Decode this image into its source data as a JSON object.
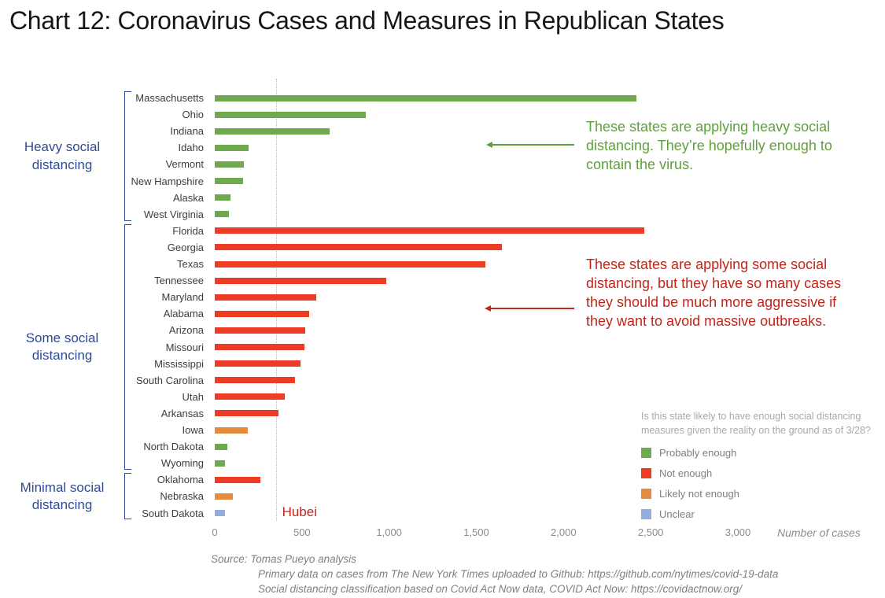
{
  "title": "Chart 12: Coronavirus Cases and Measures in Republican States",
  "colors": {
    "probably_enough": "#6EA84F",
    "not_enough": "#EE3B23",
    "likely_not_enough": "#E58B3E",
    "unclear": "#93AEDC",
    "group_label": "#2F4B93",
    "annotation_green": "#5FA03C",
    "annotation_red": "#C2251A",
    "hubei_line": "#F29B9B",
    "axis_text": "#8C8C8C",
    "state_label": "#3D3D3D",
    "legend_title": "#A9A9A9",
    "legend_text": "#7F7F7F",
    "source_text": "#7F7F7F"
  },
  "chart_data": {
    "type": "bar",
    "orientation": "horizontal",
    "title": "Chart 12: Coronavirus Cases and Measures in Republican States",
    "xlabel": "Number of cases",
    "xlim": [
      0,
      3000
    ],
    "x_ticks": [
      0,
      500,
      1000,
      1500,
      2000,
      2500,
      3000
    ],
    "x_tick_labels": [
      "0",
      "500",
      "1,000",
      "1,500",
      "2,000",
      "2,500",
      "3,000"
    ],
    "grid": false,
    "legend_position": "bottom-right",
    "reference_line": {
      "label": "Hubei",
      "value": 350
    },
    "groups": [
      {
        "label": "Heavy social distancing",
        "states": [
          {
            "name": "Massachusetts",
            "value": 2420,
            "category": "probably_enough"
          },
          {
            "name": "Ohio",
            "value": 865,
            "category": "probably_enough"
          },
          {
            "name": "Indiana",
            "value": 660,
            "category": "probably_enough"
          },
          {
            "name": "Idaho",
            "value": 195,
            "category": "probably_enough"
          },
          {
            "name": "Vermont",
            "value": 165,
            "category": "probably_enough"
          },
          {
            "name": "New Hampshire",
            "value": 160,
            "category": "probably_enough"
          },
          {
            "name": "Alaska",
            "value": 90,
            "category": "probably_enough"
          },
          {
            "name": "West Virginia",
            "value": 80,
            "category": "probably_enough"
          }
        ]
      },
      {
        "label": "Some social distancing",
        "states": [
          {
            "name": "Florida",
            "value": 2465,
            "category": "not_enough"
          },
          {
            "name": "Georgia",
            "value": 1645,
            "category": "not_enough"
          },
          {
            "name": "Texas",
            "value": 1550,
            "category": "not_enough"
          },
          {
            "name": "Tennessee",
            "value": 985,
            "category": "not_enough"
          },
          {
            "name": "Maryland",
            "value": 580,
            "category": "not_enough"
          },
          {
            "name": "Alabama",
            "value": 540,
            "category": "not_enough"
          },
          {
            "name": "Arizona",
            "value": 520,
            "category": "not_enough"
          },
          {
            "name": "Missouri",
            "value": 515,
            "category": "not_enough"
          },
          {
            "name": "Mississippi",
            "value": 490,
            "category": "not_enough"
          },
          {
            "name": "South Carolina",
            "value": 460,
            "category": "not_enough"
          },
          {
            "name": "Utah",
            "value": 400,
            "category": "not_enough"
          },
          {
            "name": "Arkansas",
            "value": 365,
            "category": "not_enough"
          },
          {
            "name": "Iowa",
            "value": 190,
            "category": "likely_not_enough"
          },
          {
            "name": "North Dakota",
            "value": 70,
            "category": "probably_enough"
          },
          {
            "name": "Wyoming",
            "value": 60,
            "category": "probably_enough"
          }
        ]
      },
      {
        "label": "Minimal social distancing",
        "states": [
          {
            "name": "Oklahoma",
            "value": 260,
            "category": "not_enough"
          },
          {
            "name": "Nebraska",
            "value": 105,
            "category": "likely_not_enough"
          },
          {
            "name": "South Dakota",
            "value": 60,
            "category": "unclear"
          }
        ]
      }
    ]
  },
  "annotations": {
    "heavy": {
      "text": "These states are applying heavy social distancing. They’re hopefully enough to contain the virus.",
      "color_key": "annotation_green"
    },
    "some": {
      "text": "These states are applying some social distancing, but they have so many cases they should be much more aggressive if they want to avoid massive outbreaks.",
      "color_key": "annotation_red"
    }
  },
  "legend": {
    "title": "Is this state likely to have enough social distancing measures given the reality on the ground as of 3/28?",
    "items": [
      {
        "label": "Probably enough",
        "color_key": "probably_enough"
      },
      {
        "label": "Not enough",
        "color_key": "not_enough"
      },
      {
        "label": "Likely not enough",
        "color_key": "likely_not_enough"
      },
      {
        "label": "Unclear",
        "color_key": "unclear"
      }
    ]
  },
  "source": {
    "line1": "Source: Tomas Pueyo analysis",
    "line2": "Primary data on cases from The New York Times uploaded to Github: https://github.com/nytimes/covid-19-data",
    "line3": "Social distancing classification based on Covid Act Now data, COVID Act Now: https://covidactnow.org/"
  }
}
